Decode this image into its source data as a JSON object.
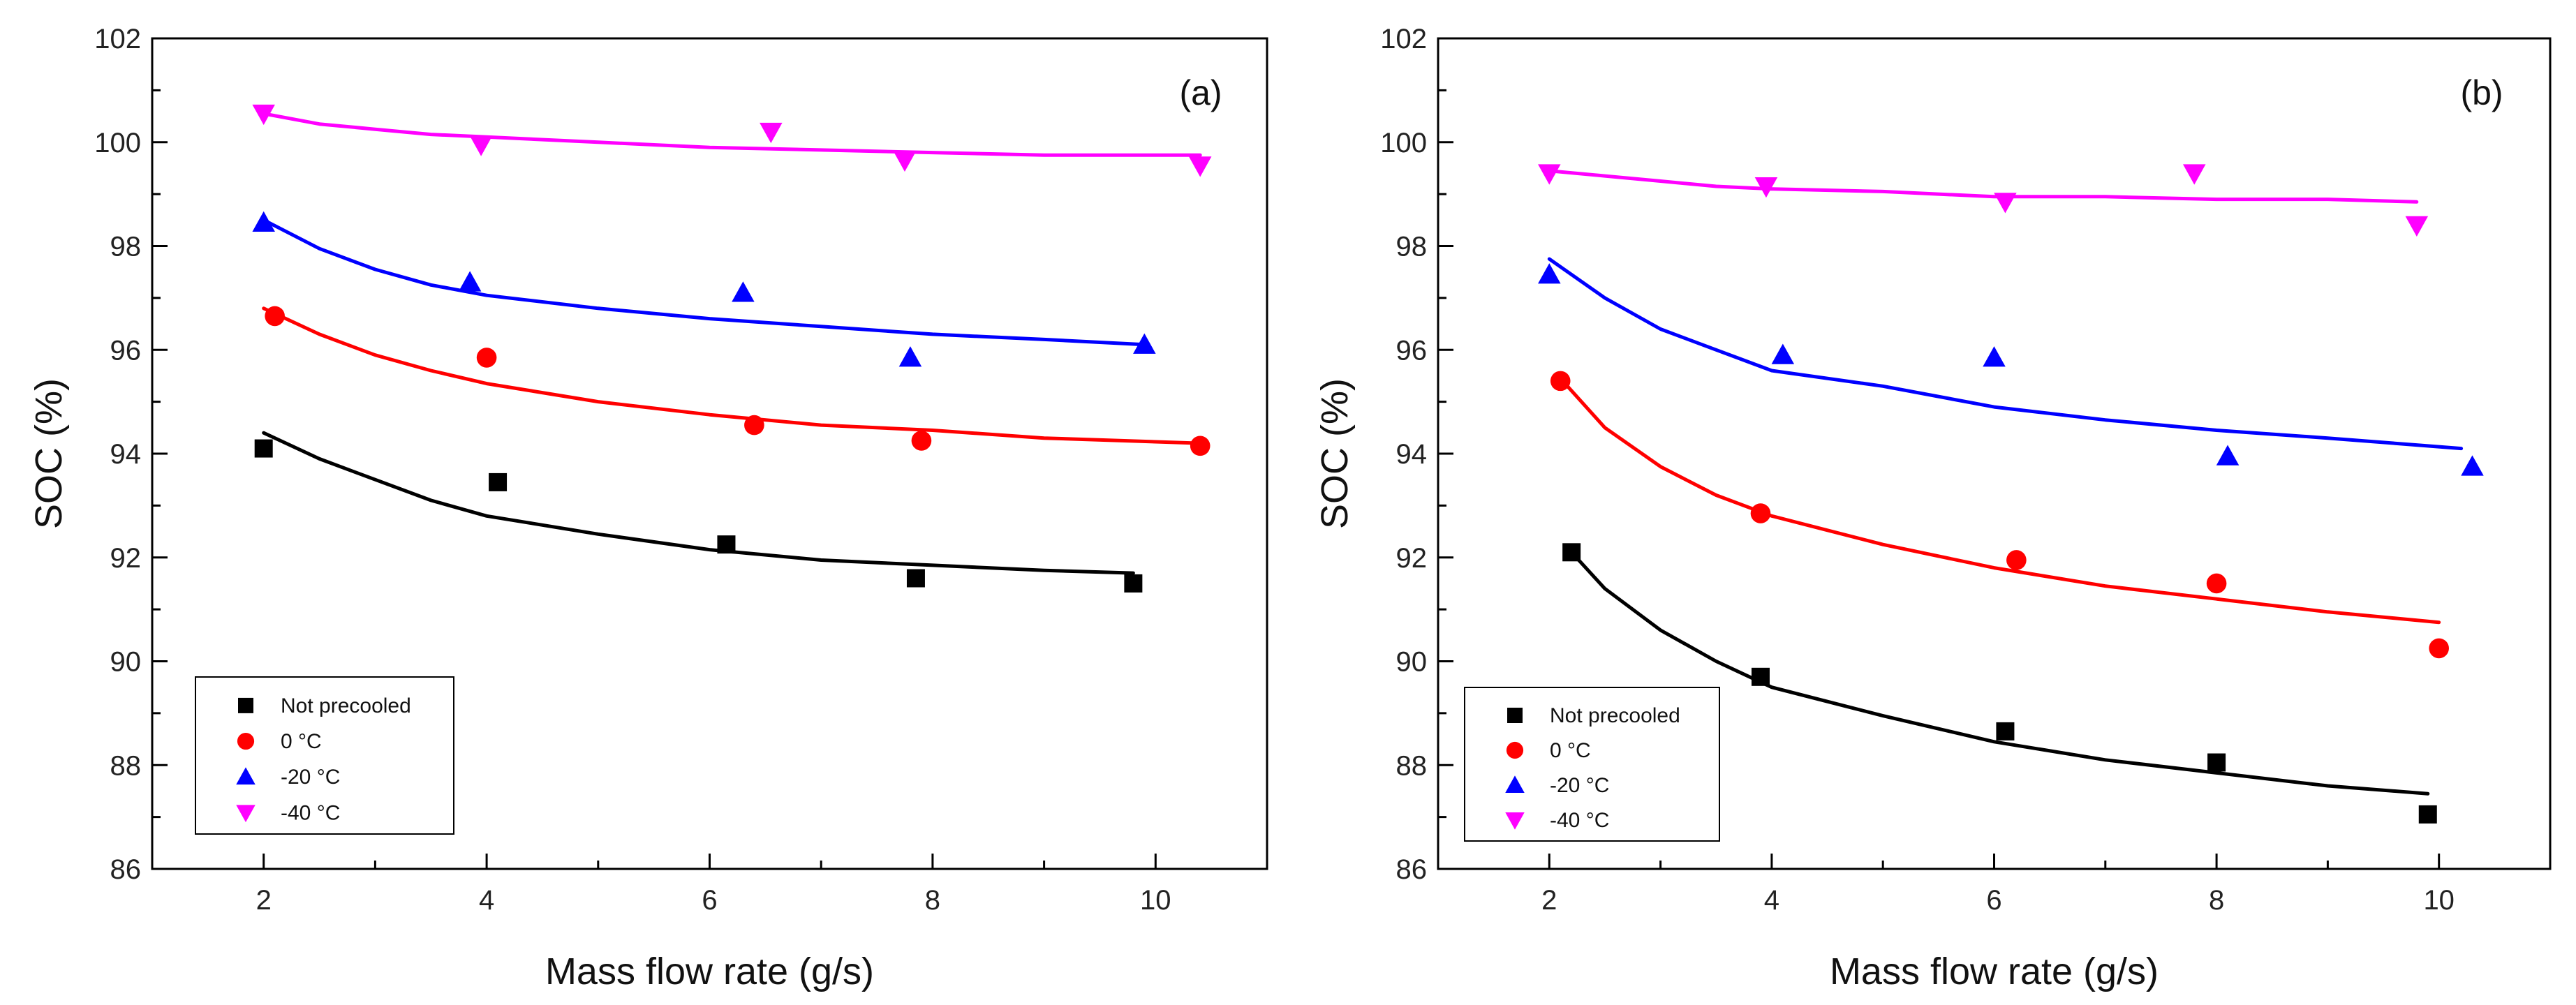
{
  "chart_data": [
    {
      "type": "scatter",
      "panel_label": "(a)",
      "xlabel": "Mass flow rate (g/s)",
      "ylabel": "SOC (%)",
      "xlim": [
        1,
        11
      ],
      "ylim": [
        86,
        102
      ],
      "xticks": [
        2,
        4,
        6,
        8,
        10
      ],
      "yticks": [
        86,
        88,
        90,
        92,
        94,
        96,
        98,
        100,
        102
      ],
      "legend_position": "bottom-left",
      "series": [
        {
          "name": "Not precooled",
          "color": "#000000",
          "marker": "square",
          "x": [
            2.0,
            4.1,
            6.15,
            7.85,
            9.8
          ],
          "y": [
            94.1,
            93.45,
            92.25,
            91.6,
            91.5
          ],
          "fit": {
            "x": [
              2.0,
              2.5,
              3,
              3.5,
              4,
              5,
              6,
              7,
              8,
              9,
              9.8
            ],
            "y": [
              94.4,
              93.9,
              93.5,
              93.1,
              92.8,
              92.45,
              92.15,
              91.95,
              91.85,
              91.75,
              91.7
            ]
          }
        },
        {
          "name": "0 °C",
          "color": "#ff0000",
          "marker": "circle",
          "x": [
            2.1,
            4.0,
            6.4,
            7.9,
            10.4
          ],
          "y": [
            96.65,
            95.85,
            94.55,
            94.25,
            94.15
          ],
          "fit": {
            "x": [
              2.0,
              2.5,
              3,
              3.5,
              4,
              5,
              6,
              7,
              8,
              9,
              10.4
            ],
            "y": [
              96.8,
              96.3,
              95.9,
              95.6,
              95.35,
              95.0,
              94.75,
              94.55,
              94.45,
              94.3,
              94.2
            ]
          }
        },
        {
          "name": "-20 °C",
          "color": "#0000ff",
          "marker": "triangle-up",
          "x": [
            2.0,
            3.85,
            6.3,
            7.8,
            9.9
          ],
          "y": [
            98.45,
            97.3,
            97.1,
            95.85,
            96.1
          ],
          "fit": {
            "x": [
              2.0,
              2.5,
              3,
              3.5,
              4,
              5,
              6,
              7,
              8,
              9,
              9.9
            ],
            "y": [
              98.5,
              97.95,
              97.55,
              97.25,
              97.05,
              96.8,
              96.6,
              96.45,
              96.3,
              96.2,
              96.1
            ]
          }
        },
        {
          "name": "-40 °C",
          "color": "#ff00ff",
          "marker": "triangle-down",
          "x": [
            2.0,
            3.95,
            6.55,
            7.75,
            10.4
          ],
          "y": [
            100.55,
            99.95,
            100.2,
            99.65,
            99.55
          ],
          "fit": {
            "x": [
              2.0,
              2.5,
              3,
              3.5,
              4,
              5,
              6,
              7,
              8,
              9,
              10.4
            ],
            "y": [
              100.55,
              100.35,
              100.25,
              100.15,
              100.1,
              100.0,
              99.9,
              99.85,
              99.8,
              99.75,
              99.75
            ]
          }
        }
      ]
    },
    {
      "type": "scatter",
      "panel_label": "(b)",
      "xlabel": "Mass flow rate (g/s)",
      "ylabel": "SOC (%)",
      "xlim": [
        1,
        11
      ],
      "ylim": [
        86,
        102
      ],
      "xticks": [
        2,
        4,
        6,
        8,
        10
      ],
      "yticks": [
        86,
        88,
        90,
        92,
        94,
        96,
        98,
        100,
        102
      ],
      "legend_position": "bottom-left",
      "series": [
        {
          "name": "Not precooled",
          "color": "#000000",
          "marker": "square",
          "x": [
            2.2,
            3.9,
            6.1,
            8.0,
            9.9
          ],
          "y": [
            92.1,
            89.7,
            88.65,
            88.05,
            87.05
          ],
          "fit": {
            "x": [
              2.2,
              2.5,
              3,
              3.5,
              4,
              5,
              6,
              7,
              8,
              9,
              9.9
            ],
            "y": [
              92.1,
              91.4,
              90.6,
              90.0,
              89.5,
              88.95,
              88.45,
              88.1,
              87.85,
              87.6,
              87.45
            ]
          }
        },
        {
          "name": "0 °C",
          "color": "#ff0000",
          "marker": "circle",
          "x": [
            2.1,
            3.9,
            6.2,
            8.0,
            10.0
          ],
          "y": [
            95.4,
            92.85,
            91.95,
            91.5,
            90.25
          ],
          "fit": {
            "x": [
              2.1,
              2.5,
              3,
              3.5,
              4,
              5,
              6,
              7,
              8,
              9,
              10.0
            ],
            "y": [
              95.45,
              94.5,
              93.75,
              93.2,
              92.8,
              92.25,
              91.8,
              91.45,
              91.2,
              90.95,
              90.75
            ]
          }
        },
        {
          "name": "-20 °C",
          "color": "#0000ff",
          "marker": "triangle-up",
          "x": [
            2.0,
            4.1,
            6.0,
            8.1,
            10.3
          ],
          "y": [
            97.45,
            95.9,
            95.85,
            93.95,
            93.75
          ],
          "fit": {
            "x": [
              2.0,
              2.5,
              3,
              3.5,
              4,
              5,
              6,
              7,
              8,
              9,
              10.2
            ],
            "y": [
              97.75,
              97.0,
              96.4,
              96.0,
              95.6,
              95.3,
              94.9,
              94.65,
              94.45,
              94.3,
              94.1
            ]
          }
        },
        {
          "name": "-40 °C",
          "color": "#ff00ff",
          "marker": "triangle-down",
          "x": [
            2.0,
            3.95,
            6.1,
            7.8,
            9.8
          ],
          "y": [
            99.4,
            99.15,
            98.85,
            99.4,
            98.4
          ],
          "fit": {
            "x": [
              2.0,
              2.5,
              3,
              3.5,
              4,
              5,
              6,
              7,
              8,
              9,
              9.8
            ],
            "y": [
              99.45,
              99.35,
              99.25,
              99.15,
              99.1,
              99.05,
              98.95,
              98.95,
              98.9,
              98.9,
              98.85
            ]
          }
        }
      ]
    }
  ]
}
